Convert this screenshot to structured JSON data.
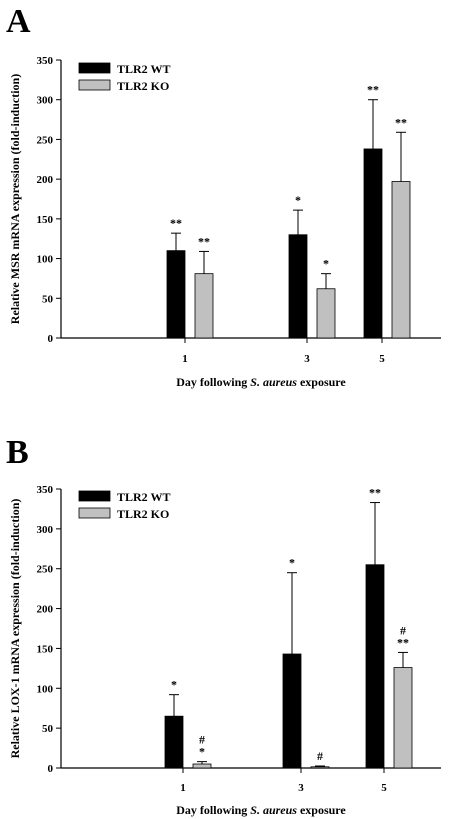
{
  "chart_data": [
    {
      "type": "bar",
      "panel": "A",
      "categories": [
        "1",
        "3",
        "5"
      ],
      "xlabel": "Day following S. aureus exposure",
      "xlabel_parts": [
        "Day following ",
        "S. aureus",
        " exposure"
      ],
      "ylabel": "Relative MSR mRNA expression (fold-induction)",
      "ylim": [
        0,
        350
      ],
      "yticks": [
        0,
        50,
        100,
        150,
        200,
        250,
        300,
        350
      ],
      "legend_position": "top-left",
      "colors": {
        "TLR2 WT": "#000000",
        "TLR2 KO": "#c0c0c0"
      },
      "series": [
        {
          "name": "TLR2 WT",
          "values": [
            110,
            130,
            238
          ],
          "errors": [
            22,
            31,
            62
          ],
          "annotations": [
            [
              "**"
            ],
            [
              "*"
            ],
            [
              "**"
            ]
          ]
        },
        {
          "name": "TLR2 KO",
          "values": [
            81,
            62,
            197
          ],
          "errors": [
            28,
            19,
            62
          ],
          "annotations": [
            [
              "**"
            ],
            [
              "*"
            ],
            [
              "**"
            ]
          ]
        }
      ]
    },
    {
      "type": "bar",
      "panel": "B",
      "categories": [
        "1",
        "3",
        "5"
      ],
      "xlabel": "Day following S. aureus exposure",
      "xlabel_parts": [
        "Day following ",
        "S. aureus",
        " exposure"
      ],
      "ylabel": "Relative LOX-1 mRNA expression (fold-induction)",
      "ylim": [
        0,
        350
      ],
      "yticks": [
        0,
        50,
        100,
        150,
        200,
        250,
        300,
        350
      ],
      "legend_position": "top-left",
      "colors": {
        "TLR2 WT": "#000000",
        "TLR2 KO": "#c0c0c0"
      },
      "series": [
        {
          "name": "TLR2 WT",
          "values": [
            65,
            143,
            255
          ],
          "errors": [
            27,
            102,
            78
          ],
          "annotations": [
            [
              "*"
            ],
            [
              "*"
            ],
            [
              "**"
            ]
          ]
        },
        {
          "name": "TLR2 KO",
          "values": [
            5,
            1.5,
            126
          ],
          "errors": [
            3,
            1,
            19
          ],
          "annotations": [
            [
              "*",
              "#"
            ],
            [
              "#"
            ],
            [
              "**",
              "#"
            ]
          ]
        }
      ]
    }
  ]
}
